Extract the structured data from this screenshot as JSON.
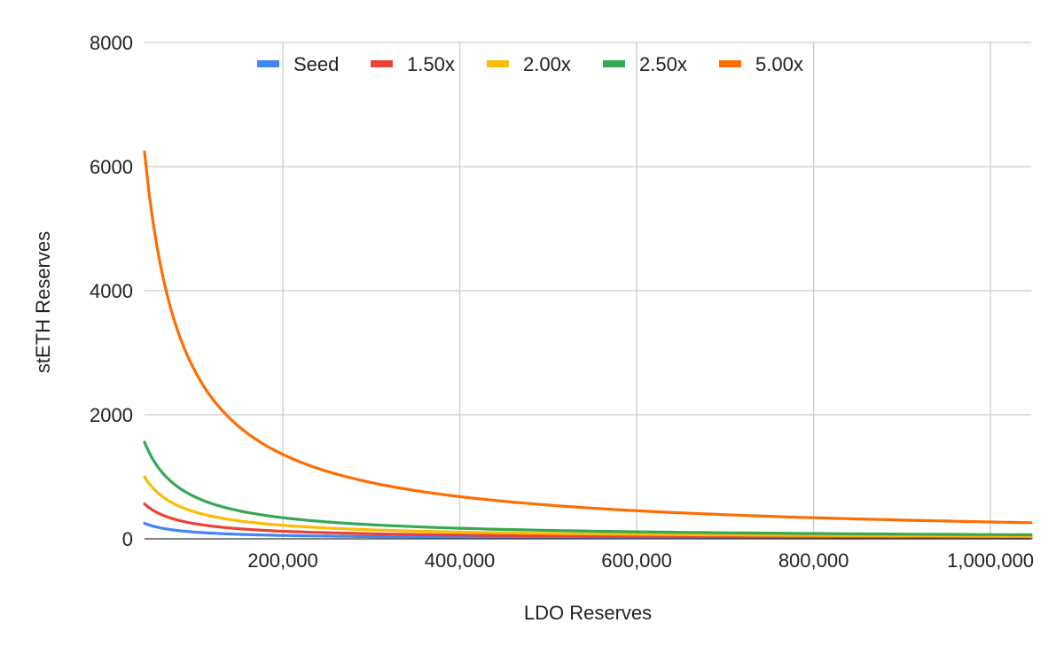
{
  "chart_data": {
    "type": "line",
    "title": "",
    "xlabel": "LDO Reserves",
    "ylabel": "stETH Reserves",
    "xlim": [
      43600,
      1046000
    ],
    "ylim": [
      0,
      8000
    ],
    "grid": true,
    "legend_position": "top",
    "x_ticks": [
      200000,
      400000,
      600000,
      800000,
      1000000
    ],
    "x_tick_labels": [
      "200,000",
      "400,000",
      "600,000",
      "800,000",
      "1,000,000"
    ],
    "y_ticks": [
      0,
      2000,
      4000,
      6000,
      8000
    ],
    "y_tick_labels": [
      "0",
      "2000",
      "4000",
      "6000",
      "8000"
    ],
    "x": [
      43600,
      47000,
      50000,
      55000,
      60000,
      65000,
      70000,
      80000,
      90000,
      100000,
      115000,
      130000,
      150000,
      175000,
      200000,
      250000,
      300000,
      400000,
      500000,
      600000,
      700000,
      800000,
      900000,
      1000000,
      1046000
    ],
    "series": [
      {
        "name": "Seed",
        "color": "#4285F4",
        "values": [
          250,
          231,
          218,
          198,
          181,
          167,
          155,
          136,
          121,
          109,
          95,
          84,
          73,
          62,
          54,
          44,
          36,
          27,
          22,
          18,
          16,
          14,
          12,
          11,
          10
        ]
      },
      {
        "name": "1.50x",
        "color": "#EA4335",
        "values": [
          562,
          521,
          490,
          445,
          408,
          377,
          350,
          306,
          272,
          245,
          213,
          188,
          163,
          140,
          122,
          98,
          82,
          61,
          49,
          41,
          35,
          31,
          27,
          24,
          23
        ]
      },
      {
        "name": "2.00x",
        "color": "#FBBC04",
        "values": [
          998,
          926,
          870,
          791,
          725,
          670,
          622,
          544,
          484,
          435,
          378,
          335,
          290,
          249,
          218,
          174,
          145,
          109,
          87,
          73,
          62,
          54,
          48,
          44,
          42
        ]
      },
      {
        "name": "2.50x",
        "color": "#34A853",
        "values": [
          1560,
          1447,
          1360,
          1236,
          1133,
          1046,
          972,
          850,
          756,
          680,
          591,
          523,
          453,
          389,
          340,
          272,
          227,
          170,
          136,
          113,
          97,
          85,
          76,
          68,
          65
        ]
      },
      {
        "name": "5.00x",
        "color": "#FF6D01",
        "values": [
          6239,
          5787,
          5440,
          4945,
          4533,
          4185,
          3886,
          3400,
          3022,
          2720,
          2365,
          2092,
          1813,
          1554,
          1360,
          1088,
          907,
          680,
          544,
          453,
          389,
          340,
          302,
          272,
          260
        ]
      }
    ]
  }
}
